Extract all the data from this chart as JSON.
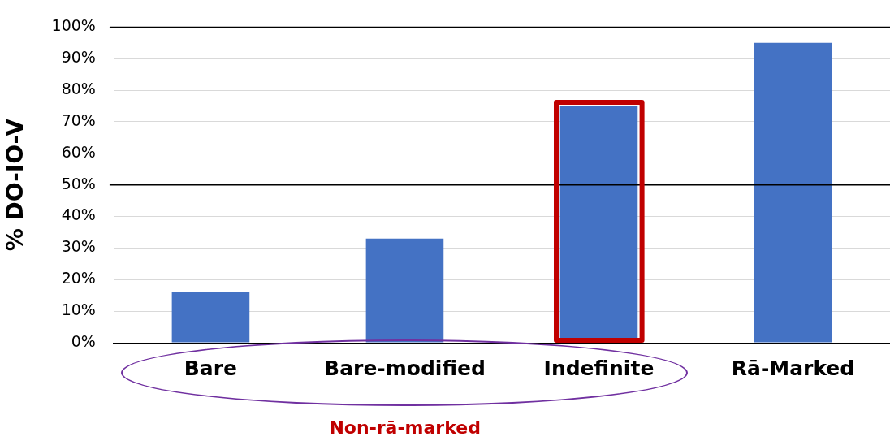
{
  "chart_data": {
    "type": "bar",
    "ylabel": "% DO-IO-V",
    "categories": [
      "Bare",
      "Bare-modified",
      "Indefinite",
      "Rā-Marked"
    ],
    "values": [
      16,
      33,
      75,
      95
    ],
    "color": "#4472c4",
    "ylim": [
      0,
      100
    ],
    "yticks": [
      {
        "value": 0,
        "label": "0%"
      },
      {
        "value": 10,
        "label": "10%"
      },
      {
        "value": 20,
        "label": "20%"
      },
      {
        "value": 30,
        "label": "30%"
      },
      {
        "value": 40,
        "label": "40%"
      },
      {
        "value": 50,
        "label": "50%"
      },
      {
        "value": 60,
        "label": "60%"
      },
      {
        "value": 70,
        "label": "70%"
      },
      {
        "value": 80,
        "label": "80%"
      },
      {
        "value": 90,
        "label": "90%"
      },
      {
        "value": 100,
        "label": "100%"
      }
    ],
    "grid": "y",
    "ref_lines": [
      {
        "axis": "y",
        "value": 50,
        "color": "#000000"
      },
      {
        "axis": "y",
        "value": 100,
        "color": "#000000"
      }
    ],
    "annotations": [
      "Non-rā-marked"
    ]
  }
}
